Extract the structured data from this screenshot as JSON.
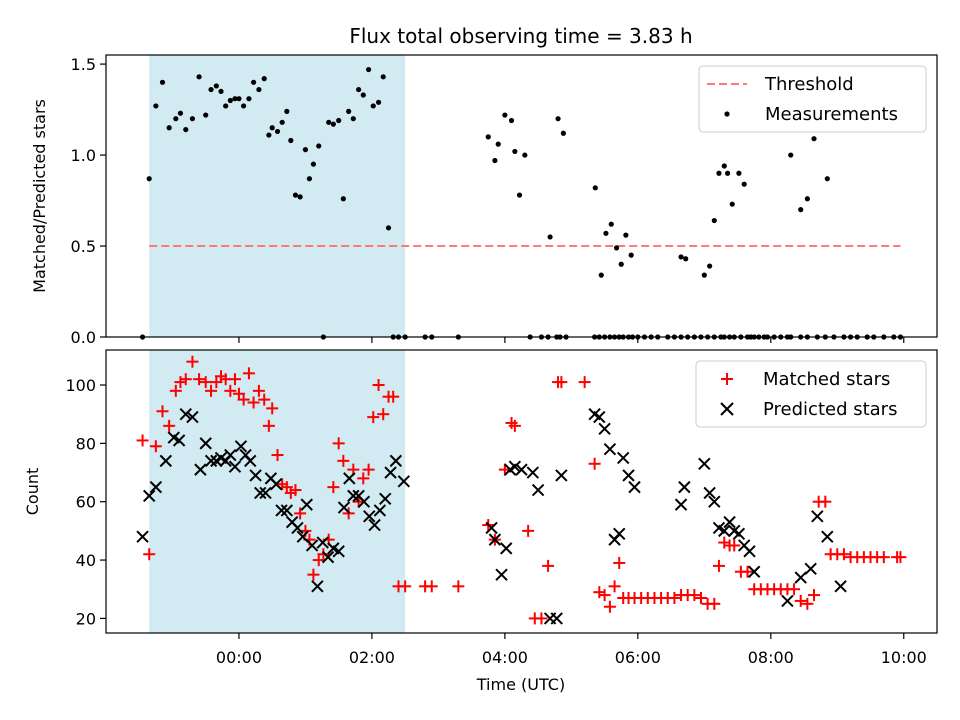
{
  "chart_data": {
    "title": "Flux total observing time = 3.83 h",
    "xlabel": "Time (UTC)",
    "x_unit": "hours UTC",
    "x_ticks": [
      "00:00",
      "02:00",
      "04:00",
      "06:00",
      "08:00",
      "10:00"
    ],
    "x_tick_values": [
      0,
      2,
      4,
      6,
      8,
      10
    ],
    "xlim": [
      -2.0,
      10.5
    ],
    "shaded_region": {
      "x_start": -1.35,
      "x_end": 2.5,
      "color": "#add8e6"
    },
    "panels": [
      {
        "type": "scatter",
        "ylabel": "Matched/Predicted stars",
        "ylim": [
          0,
          1.55
        ],
        "y_ticks": [
          "0.0",
          "0.5",
          "1.0",
          "1.5"
        ],
        "y_tick_values": [
          0,
          0.5,
          1.0,
          1.5
        ],
        "legend_position": "top-right",
        "threshold": {
          "name": "Threshold",
          "y": 0.5,
          "x_range": [
            -1.35,
            9.95
          ],
          "color": "#ff7777"
        },
        "series": [
          {
            "name": "Measurements",
            "marker": "dot",
            "color": "#000000",
            "x": [
              -1.45,
              -1.35,
              -1.25,
              -1.15,
              -1.05,
              -0.95,
              -0.88,
              -0.8,
              -0.7,
              -0.6,
              -0.5,
              -0.42,
              -0.34,
              -0.27,
              -0.2,
              -0.13,
              -0.06,
              0.0,
              0.07,
              0.15,
              0.22,
              0.3,
              0.38,
              0.45,
              0.5,
              0.58,
              0.65,
              0.72,
              0.78,
              0.85,
              0.92,
              1.0,
              1.06,
              1.12,
              1.2,
              1.27,
              1.35,
              1.42,
              1.5,
              1.57,
              1.65,
              1.72,
              1.8,
              1.87,
              1.95,
              2.02,
              2.1,
              2.17,
              2.25,
              2.32,
              2.4,
              2.5,
              2.8,
              2.9,
              3.3,
              3.75,
              3.85,
              3.9,
              4.0,
              4.1,
              4.15,
              4.22,
              4.3,
              4.38,
              4.55,
              4.65,
              4.78,
              4.83,
              4.92,
              5.35,
              5.42,
              5.5,
              5.58,
              5.65,
              5.72,
              5.78,
              5.86,
              5.92,
              6.0,
              6.1,
              6.2,
              6.3,
              6.45,
              6.55,
              6.65,
              6.75,
              6.85,
              6.95,
              7.05,
              7.15,
              7.25,
              7.3,
              7.38,
              7.45,
              7.55,
              7.65,
              7.75,
              7.82,
              7.9,
              7.95,
              8.05,
              8.15,
              8.25,
              8.3,
              8.45,
              8.55,
              8.7,
              8.82,
              8.95,
              9.1,
              9.2,
              9.3,
              9.45,
              9.55,
              9.7,
              9.85,
              9.95
            ],
            "y": [
              0.0,
              0.87,
              1.27,
              1.4,
              1.15,
              1.2,
              1.23,
              1.14,
              1.2,
              1.43,
              1.22,
              1.36,
              1.38,
              1.35,
              1.27,
              1.3,
              1.31,
              1.31,
              1.27,
              1.31,
              1.4,
              1.36,
              1.42,
              1.11,
              1.15,
              1.13,
              1.18,
              1.24,
              1.08,
              0.78,
              0.77,
              1.03,
              0.87,
              0.95,
              1.05,
              0.0,
              1.18,
              1.17,
              1.19,
              0.76,
              1.24,
              1.2,
              1.36,
              1.33,
              1.47,
              1.27,
              1.29,
              1.43,
              0.6,
              0.0,
              0.0,
              0.0,
              0.0,
              0.0,
              0.0,
              1.1,
              0.97,
              1.06,
              1.22,
              1.19,
              1.02,
              0.78,
              1.0,
              0.0,
              0.0,
              0.0,
              0.0,
              0.0,
              0.0,
              0.0,
              0.0,
              0.0,
              0.0,
              0.0,
              0.0,
              0.0,
              0.0,
              0.0,
              0.0,
              0.0,
              0.0,
              0.0,
              0.0,
              0.0,
              0.0,
              0.0,
              0.0,
              0.0,
              0.0,
              0.0,
              0.0,
              0.0,
              0.0,
              0.0,
              0.0,
              0.0,
              0.0,
              0.0,
              0.0,
              0.0,
              0.0,
              0.0,
              0.0,
              0.0,
              0.0,
              0.0,
              0.0,
              0.0,
              0.0,
              0.0,
              0.0,
              0.0,
              0.0,
              0.0,
              0.0,
              0.0,
              0.0
            ]
          }
        ],
        "extra_points": {
          "x": [
            4.68,
            4.8,
            4.88,
            5.36,
            5.45,
            5.52,
            5.6,
            5.68,
            5.75,
            5.82,
            5.9,
            6.65,
            6.72,
            7.0,
            7.08,
            7.15,
            7.22,
            7.3,
            7.35,
            7.42,
            7.52,
            7.6,
            7.7,
            8.3,
            8.45,
            8.55,
            8.65,
            8.85,
            9.05
          ],
          "y": [
            0.55,
            1.2,
            1.12,
            0.82,
            0.34,
            0.57,
            0.62,
            0.49,
            0.4,
            0.56,
            0.45,
            0.44,
            0.43,
            0.34,
            0.39,
            0.64,
            0.9,
            0.94,
            0.9,
            0.73,
            0.9,
            0.84,
            0.0,
            1.0,
            0.7,
            0.76,
            1.09,
            0.87,
            1.33
          ]
        }
      },
      {
        "type": "scatter",
        "ylabel": "Count",
        "ylim": [
          15,
          112
        ],
        "y_ticks": [
          "20",
          "40",
          "60",
          "80",
          "100"
        ],
        "y_tick_values": [
          20,
          40,
          60,
          80,
          100
        ],
        "legend_position": "top-right",
        "series": [
          {
            "name": "Matched stars",
            "marker": "plus",
            "color": "#ff0000",
            "x": [
              -1.45,
              -1.35,
              -1.25,
              -1.15,
              -1.05,
              -0.95,
              -0.88,
              -0.8,
              -0.7,
              -0.6,
              -0.5,
              -0.42,
              -0.34,
              -0.27,
              -0.2,
              -0.13,
              -0.06,
              0.0,
              0.07,
              0.15,
              0.22,
              0.3,
              0.38,
              0.45,
              0.5,
              0.58,
              0.65,
              0.72,
              0.78,
              0.85,
              0.92,
              1.0,
              1.06,
              1.12,
              1.2,
              1.27,
              1.35,
              1.42,
              1.5,
              1.57,
              1.65,
              1.72,
              1.8,
              1.87,
              1.95,
              2.02,
              2.1,
              2.17,
              2.25,
              2.32,
              2.4,
              2.5,
              2.8,
              2.9,
              3.3,
              3.75,
              3.85,
              4.0,
              4.1,
              4.15,
              4.35,
              4.45,
              4.55,
              4.65,
              4.8,
              4.85,
              5.2,
              5.35,
              5.42,
              5.5,
              5.58,
              5.65,
              5.72,
              5.78,
              5.86,
              5.95,
              6.05,
              6.15,
              6.25,
              6.35,
              6.45,
              6.55,
              6.65,
              6.75,
              6.85,
              6.95,
              7.05,
              7.15,
              7.22,
              7.3,
              7.38,
              7.45,
              7.55,
              7.65,
              7.75,
              7.85,
              7.95,
              8.05,
              8.15,
              8.25,
              8.35,
              8.45,
              8.55,
              8.65,
              8.72,
              8.82,
              8.9,
              9.0,
              9.1,
              9.2,
              9.3,
              9.4,
              9.5,
              9.6,
              9.7,
              9.9,
              9.95
            ],
            "y": [
              81,
              42,
              79,
              91,
              86,
              98,
              101,
              102,
              108,
              102,
              101,
              98,
              101,
              103,
              102,
              98,
              102,
              97,
              95,
              104,
              94,
              98,
              95,
              86,
              92,
              76,
              66,
              65,
              63,
              64,
              56,
              50,
              47,
              35,
              40,
              42,
              47,
              65,
              80,
              74,
              56,
              71,
              60,
              68,
              71,
              89,
              100,
              90,
              96,
              96,
              31,
              31,
              31,
              31,
              31,
              52,
              47,
              71,
              87,
              86,
              50,
              20,
              20,
              38,
              101,
              101,
              101,
              73,
              29,
              28,
              24,
              31,
              39,
              27,
              27,
              27,
              27,
              27,
              27,
              27,
              27,
              27,
              28,
              28,
              28,
              27,
              25,
              25,
              38,
              46,
              45,
              45,
              36,
              36,
              30,
              30,
              30,
              30,
              30,
              30,
              30,
              26,
              25,
              28,
              60,
              60,
              42,
              42,
              42,
              41,
              41,
              41,
              41,
              41,
              41,
              41,
              41
            ]
          },
          {
            "name": "Predicted stars",
            "marker": "x",
            "color": "#000000",
            "x": [
              -1.45,
              -1.35,
              -1.25,
              -1.1,
              -0.98,
              -0.9,
              -0.8,
              -0.7,
              -0.58,
              -0.5,
              -0.42,
              -0.34,
              -0.27,
              -0.2,
              -0.13,
              -0.06,
              0.03,
              0.1,
              0.17,
              0.25,
              0.32,
              0.4,
              0.48,
              0.56,
              0.64,
              0.72,
              0.8,
              0.88,
              0.96,
              1.02,
              1.1,
              1.18,
              1.26,
              1.34,
              1.42,
              1.5,
              1.58,
              1.66,
              1.72,
              1.8,
              1.88,
              1.96,
              2.04,
              2.12,
              2.2,
              2.28,
              2.36,
              2.48,
              3.8,
              3.85,
              3.95,
              4.02,
              4.08,
              4.15,
              4.25,
              4.42,
              4.5,
              4.68,
              4.78,
              4.85,
              5.35,
              5.42,
              5.5,
              5.58,
              5.65,
              5.72,
              5.78,
              5.86,
              5.95,
              6.65,
              6.7,
              7.0,
              7.08,
              7.15,
              7.22,
              7.3,
              7.38,
              7.45,
              7.52,
              7.6,
              7.68,
              7.75,
              8.25,
              8.45,
              8.6,
              8.7,
              8.85,
              9.05
            ],
            "y": [
              48,
              62,
              65,
              74,
              82,
              81,
              90,
              89,
              71,
              80,
              74,
              74,
              75,
              74,
              76,
              72,
              79,
              76,
              74,
              69,
              63,
              63,
              68,
              66,
              57,
              57,
              53,
              51,
              48,
              59,
              45,
              31,
              46,
              41,
              44,
              43,
              58,
              68,
              62,
              62,
              60,
              55,
              52,
              57,
              61,
              70,
              74,
              67,
              51,
              47,
              35,
              44,
              71,
              72,
              71,
              70,
              64,
              20,
              20,
              69,
              90,
              89,
              85,
              78,
              47,
              49,
              75,
              69,
              65,
              59,
              65,
              73,
              63,
              60,
              51,
              50,
              53,
              50,
              49,
              45,
              43,
              36,
              26,
              34,
              37,
              55,
              48,
              31
            ]
          }
        ]
      }
    ]
  }
}
